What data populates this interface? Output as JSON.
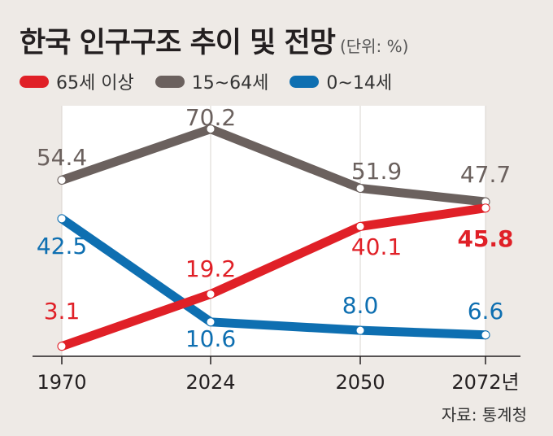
{
  "header": {
    "title": "한국 인구구조 추이 및 전망",
    "unit": "(단위: %)"
  },
  "legend": [
    {
      "label": "65세 이상",
      "color": "#e02027"
    },
    {
      "label": "15~64세",
      "color": "#6b615e"
    },
    {
      "label": "0~14세",
      "color": "#0e6fb1"
    }
  ],
  "source": "자료: 통계청",
  "chart_data": {
    "type": "line",
    "categories": [
      "1970",
      "2024",
      "2050",
      "2072년"
    ],
    "series": [
      {
        "name": "15~64세",
        "values": [
          54.4,
          70.2,
          51.9,
          47.7
        ],
        "labels": [
          "54.4",
          "70.2",
          "51.9",
          "47.7"
        ],
        "color": "#6b615e"
      },
      {
        "name": "0~14세",
        "values": [
          42.5,
          10.6,
          8.0,
          6.6
        ],
        "labels": [
          "42.5",
          "10.6",
          "8.0",
          "6.6"
        ],
        "color": "#0e6fb1"
      },
      {
        "name": "65세 이상",
        "values": [
          3.1,
          19.2,
          40.1,
          45.8
        ],
        "labels": [
          "3.1",
          "19.2",
          "40.1",
          "45.8"
        ],
        "color": "#e02027"
      }
    ]
  }
}
